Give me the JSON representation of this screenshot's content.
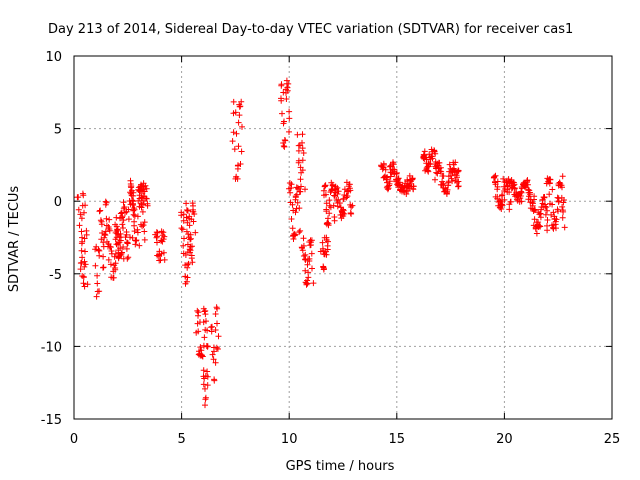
{
  "chart_data": {
    "type": "scatter",
    "title": "Day 213 of 2014, Sidereal Day-to-day VTEC variation (SDTVAR) for receiver cas1",
    "xlabel": "GPS time / hours",
    "ylabel": "SDTVAR / TECUs",
    "xlim": [
      0,
      25
    ],
    "ylim": [
      -15,
      10
    ],
    "xticks": [
      0,
      5,
      10,
      15,
      20,
      25
    ],
    "yticks": [
      -15,
      -10,
      -5,
      0,
      5,
      10
    ],
    "grid": true,
    "marker": "+",
    "color": "#ff0000",
    "segments": [
      {
        "x": [
          0.2,
          0.5
        ],
        "y": [
          -5.0,
          0.5
        ]
      },
      {
        "x": [
          0.35,
          0.6
        ],
        "y": [
          -6.0,
          -2.0
        ]
      },
      {
        "x": [
          1.0,
          1.2
        ],
        "y": [
          -6.5,
          -3.0
        ]
      },
      {
        "x": [
          1.2,
          1.6
        ],
        "y": [
          -4.5,
          0.0
        ]
      },
      {
        "x": [
          1.6,
          2.2
        ],
        "y": [
          -5.5,
          -2.0
        ]
      },
      {
        "x": [
          1.9,
          2.3
        ],
        "y": [
          -4.0,
          -0.8
        ]
      },
      {
        "x": [
          2.3,
          2.8
        ],
        "y": [
          -4.2,
          0.5
        ]
      },
      {
        "x": [
          2.6,
          3.3
        ],
        "y": [
          -3.0,
          1.3
        ]
      },
      {
        "x": [
          3.0,
          3.4
        ],
        "y": [
          -1.5,
          1.0
        ]
      },
      {
        "x": [
          3.8,
          4.2
        ],
        "y": [
          -4.0,
          -2.2
        ]
      },
      {
        "x": [
          5.0,
          5.5
        ],
        "y": [
          -5.5,
          -1.0
        ]
      },
      {
        "x": [
          5.2,
          5.6
        ],
        "y": [
          -3.5,
          -0.3
        ]
      },
      {
        "x": [
          5.7,
          6.2
        ],
        "y": [
          -10.8,
          -7.5
        ]
      },
      {
        "x": [
          6.0,
          6.2
        ],
        "y": [
          -13.8,
          -11.8
        ]
      },
      {
        "x": [
          6.4,
          6.7
        ],
        "y": [
          -12.5,
          -7.5
        ]
      },
      {
        "x": [
          7.4,
          7.8
        ],
        "y": [
          1.5,
          6.7
        ]
      },
      {
        "x": [
          9.6,
          10.0
        ],
        "y": [
          3.8,
          8.3
        ]
      },
      {
        "x": [
          10.0,
          10.5
        ],
        "y": [
          -2.5,
          1.0
        ]
      },
      {
        "x": [
          10.4,
          10.7
        ],
        "y": [
          0.5,
          4.6
        ]
      },
      {
        "x": [
          10.6,
          11.1
        ],
        "y": [
          -5.5,
          -2.8
        ]
      },
      {
        "x": [
          11.5,
          11.8
        ],
        "y": [
          -5.0,
          -2.5
        ]
      },
      {
        "x": [
          11.6,
          12.1
        ],
        "y": [
          -1.5,
          1.0
        ]
      },
      {
        "x": [
          12.1,
          12.9
        ],
        "y": [
          -1.0,
          1.0
        ]
      },
      {
        "x": [
          14.3,
          15.0
        ],
        "y": [
          1.0,
          2.5
        ]
      },
      {
        "x": [
          15.0,
          15.8
        ],
        "y": [
          0.7,
          1.5
        ]
      },
      {
        "x": [
          16.2,
          16.8
        ],
        "y": [
          2.0,
          3.3
        ]
      },
      {
        "x": [
          16.8,
          17.9
        ],
        "y": [
          0.6,
          2.5
        ]
      },
      {
        "x": [
          19.5,
          20.3
        ],
        "y": [
          -0.5,
          1.5
        ]
      },
      {
        "x": [
          20.3,
          21.2
        ],
        "y": [
          0.2,
          1.2
        ]
      },
      {
        "x": [
          21.2,
          22.0
        ],
        "y": [
          -2.0,
          0.2
        ]
      },
      {
        "x": [
          22.0,
          22.8
        ],
        "y": [
          -1.8,
          1.5
        ]
      }
    ]
  }
}
